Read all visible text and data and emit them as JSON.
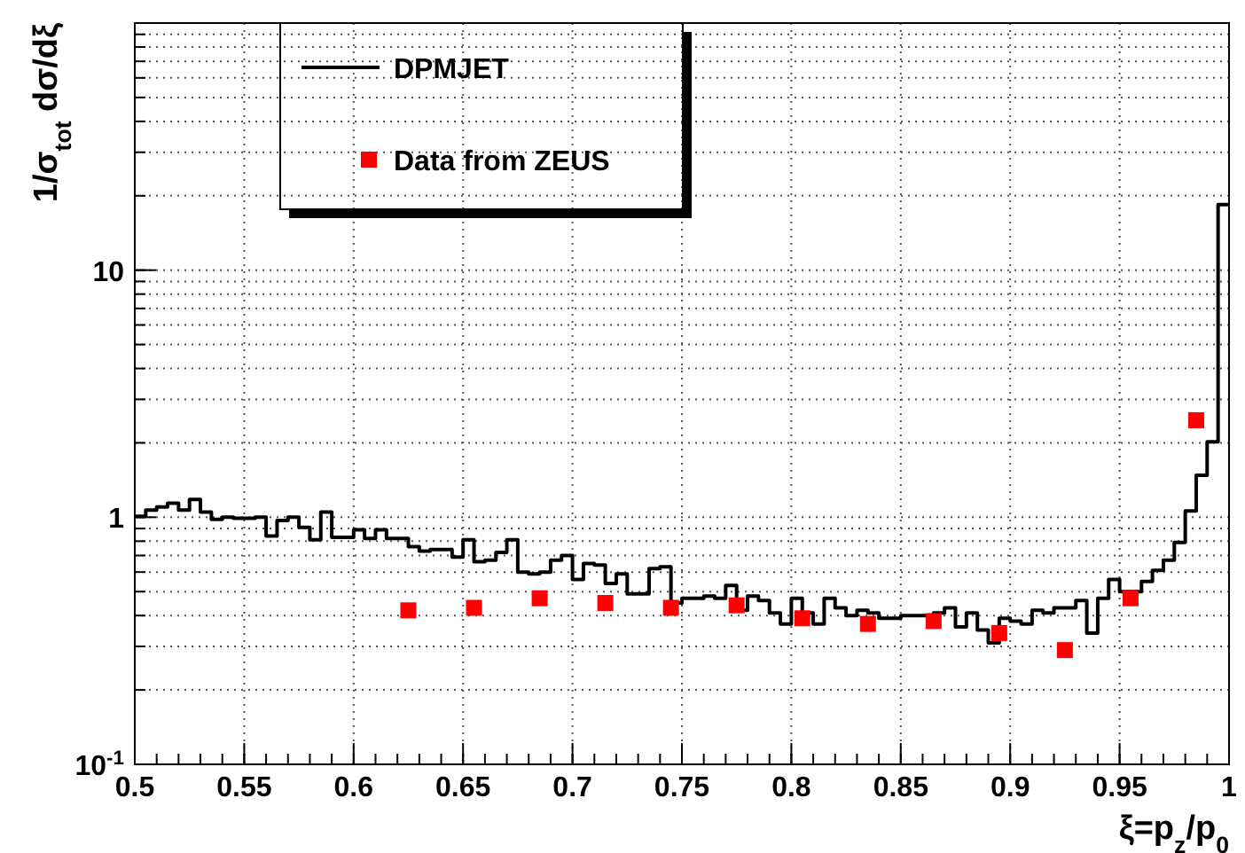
{
  "chart_data": {
    "type": "histogram",
    "xlabel": "ξ=p$_{z}$/p$_{0}$",
    "ylabel": "1/σ$_{tot}$ dσ/dξ",
    "xlim": [
      0.5,
      1
    ],
    "xticks": [
      0.5,
      0.55,
      0.6,
      0.65,
      0.7,
      0.75,
      0.8,
      0.85,
      0.9,
      0.95,
      1
    ],
    "ylim": [
      0.1,
      100
    ],
    "yticks": [
      {
        "value": 0.1,
        "label": "10$^{-1}$"
      },
      1,
      10
    ],
    "log": true,
    "grid": true,
    "legend": "top left",
    "series": [
      {
        "name": "DPMJET",
        "color": "#000000",
        "line_style": "solid",
        "bins": [
          0.5,
          0.505,
          0.51,
          0.515,
          0.52,
          0.525,
          0.53,
          0.535,
          0.54,
          0.545,
          0.55,
          0.555,
          0.56,
          0.565,
          0.57,
          0.575,
          0.58,
          0.585,
          0.59,
          0.595,
          0.6,
          0.605,
          0.61,
          0.615,
          0.62,
          0.625,
          0.63,
          0.635,
          0.64,
          0.645,
          0.65,
          0.655,
          0.66,
          0.665,
          0.67,
          0.675,
          0.68,
          0.685,
          0.69,
          0.695,
          0.7,
          0.705,
          0.71,
          0.715,
          0.72,
          0.725,
          0.73,
          0.735,
          0.74,
          0.745,
          0.75,
          0.755,
          0.76,
          0.765,
          0.77,
          0.775,
          0.78,
          0.785,
          0.79,
          0.795,
          0.8,
          0.805,
          0.81,
          0.815,
          0.82,
          0.825,
          0.83,
          0.835,
          0.84,
          0.845,
          0.85,
          0.855,
          0.86,
          0.865,
          0.87,
          0.875,
          0.88,
          0.885,
          0.89,
          0.895,
          0.9,
          0.905,
          0.91,
          0.915,
          0.92,
          0.925,
          0.93,
          0.935,
          0.94,
          0.945,
          0.95,
          0.955,
          0.96,
          0.965,
          0.97,
          0.975,
          0.98,
          0.985,
          0.99,
          0.995,
          1
        ],
        "values": [
          1.01,
          1.07,
          1.1,
          1.14,
          1.07,
          1.18,
          1.05,
          0.98,
          1.0,
          0.99,
          0.99,
          1.0,
          0.84,
          0.97,
          1.0,
          0.91,
          0.81,
          1.05,
          0.83,
          0.83,
          0.89,
          0.82,
          0.89,
          0.82,
          0.82,
          0.76,
          0.73,
          0.74,
          0.74,
          0.69,
          0.81,
          0.66,
          0.67,
          0.72,
          0.81,
          0.6,
          0.59,
          0.6,
          0.67,
          0.7,
          0.56,
          0.65,
          0.64,
          0.54,
          0.59,
          0.49,
          0.49,
          0.62,
          0.63,
          0.45,
          0.47,
          0.47,
          0.48,
          0.47,
          0.53,
          0.42,
          0.48,
          0.46,
          0.41,
          0.37,
          0.47,
          0.41,
          0.37,
          0.47,
          0.43,
          0.4,
          0.42,
          0.41,
          0.39,
          0.39,
          0.4,
          0.4,
          0.4,
          0.41,
          0.43,
          0.36,
          0.41,
          0.35,
          0.31,
          0.39,
          0.38,
          0.37,
          0.42,
          0.41,
          0.43,
          0.43,
          0.46,
          0.34,
          0.47,
          0.56,
          0.5,
          0.5,
          0.55,
          0.61,
          0.67,
          0.79,
          1.06,
          1.48,
          2.02,
          18.4
        ]
      },
      {
        "type": "scatter",
        "name": "Data from ZEUS",
        "color": "#ff0000",
        "marker": "square",
        "x": [
          0.625,
          0.655,
          0.685,
          0.715,
          0.745,
          0.775,
          0.805,
          0.835,
          0.865,
          0.895,
          0.925,
          0.955,
          0.985
        ],
        "values": [
          0.42,
          0.43,
          0.47,
          0.45,
          0.43,
          0.44,
          0.39,
          0.37,
          0.38,
          0.34,
          0.29,
          0.47,
          2.47
        ]
      }
    ]
  }
}
